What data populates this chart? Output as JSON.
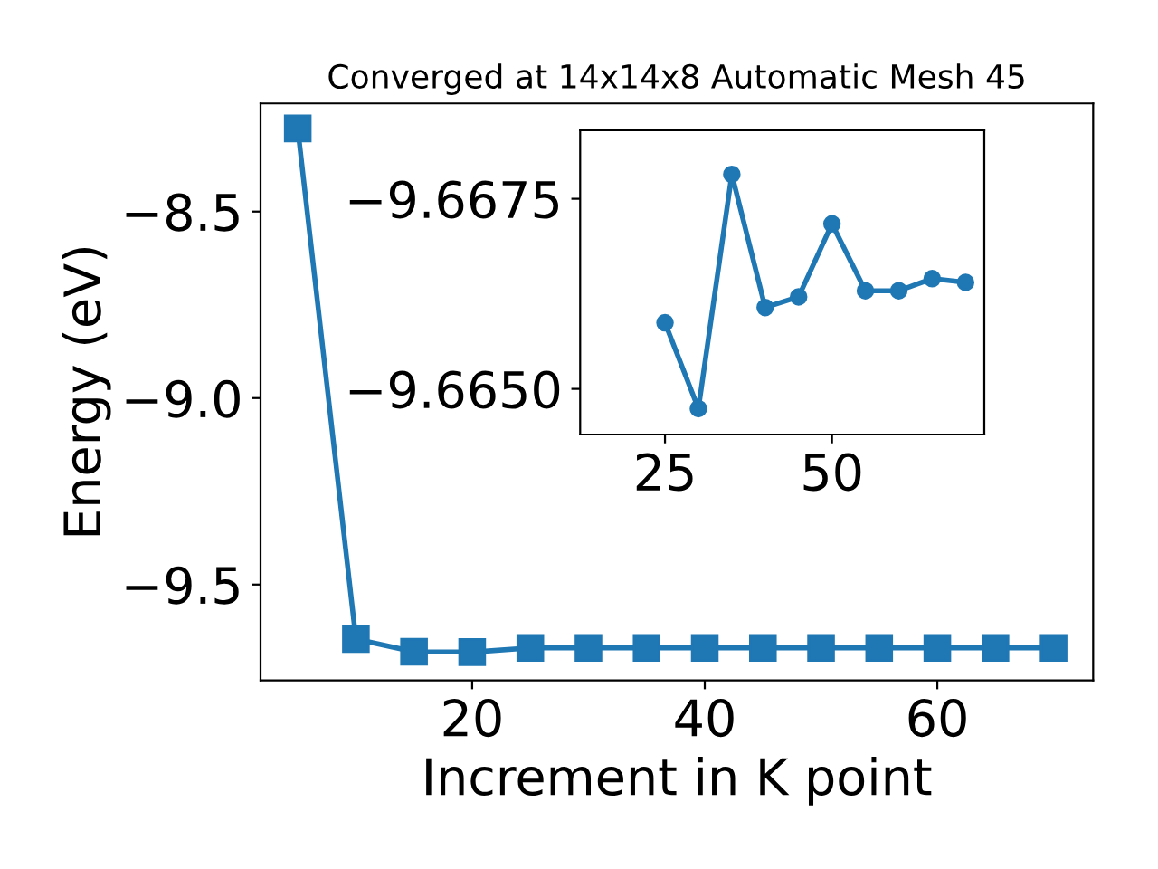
{
  "chart_data": [
    {
      "type": "line",
      "title": "Converged at 14x14x8 Automatic Mesh 45",
      "xlabel": "Increment in K point",
      "ylabel": "Energy (eV)",
      "x": [
        5,
        10,
        15,
        20,
        25,
        30,
        35,
        40,
        45,
        50,
        55,
        60,
        65,
        70
      ],
      "series": [
        {
          "color": "#1f77b4",
          "values": [
            -8.277,
            -9.646,
            -9.68,
            -9.681,
            -9.67,
            -9.67,
            -9.67,
            -9.67,
            -9.67,
            -9.67,
            -9.67,
            -9.67,
            -9.67,
            -9.67
          ]
        }
      ],
      "marker": "square",
      "xlim": [
        1.8,
        73.4
      ],
      "ylim": [
        -9.757,
        -8.21
      ],
      "xticks": [
        20,
        40,
        60
      ],
      "yticks": [
        {
          "value": -8.5,
          "label": "−8.5"
        },
        {
          "value": -9.0,
          "label": "−9.0"
        },
        {
          "value": -9.5,
          "label": "−9.5"
        }
      ],
      "grid": false,
      "legend": false
    },
    {
      "type": "line",
      "x": [
        25,
        30,
        35,
        40,
        45,
        50,
        55,
        60,
        65,
        70
      ],
      "series": [
        {
          "color": "#1f77b4",
          "values": [
            -9.66587,
            -9.66474,
            -9.66782,
            -9.66607,
            -9.66621,
            -9.66717,
            -9.66629,
            -9.66629,
            -9.66645,
            -9.6664
          ]
        }
      ],
      "marker": "circle",
      "xlim": [
        12.3,
        72.8
      ],
      "ylim": [
        -9.6644,
        -9.6684
      ],
      "xticks": [
        25,
        50
      ],
      "yticks": [
        {
          "value": -9.6675,
          "label": "−9.6675"
        },
        {
          "value": -9.665,
          "label": "−9.6650"
        }
      ],
      "grid": false,
      "legend": false
    }
  ]
}
